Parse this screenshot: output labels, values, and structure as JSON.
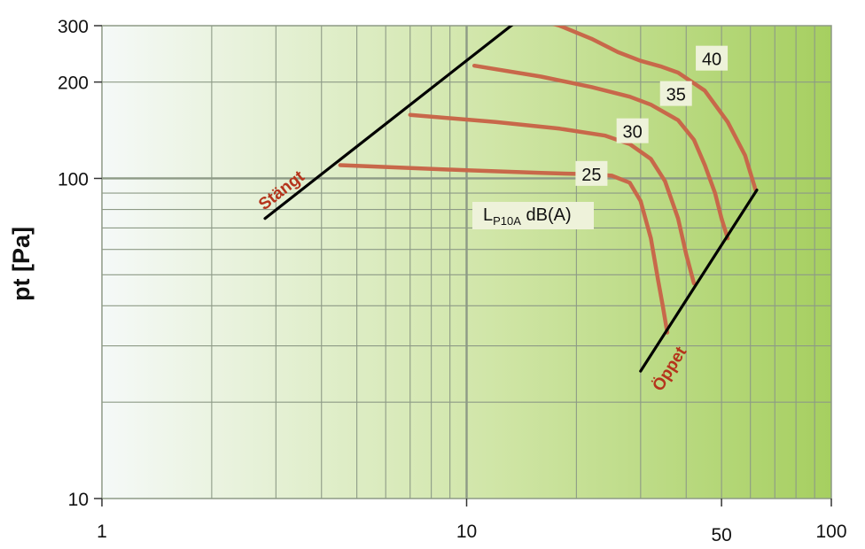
{
  "chart_data": {
    "type": "line",
    "ylabel": "pt [Pa]",
    "xlabel": "",
    "x_scale": "log",
    "y_scale": "log",
    "xlim": [
      1,
      100
    ],
    "ylim": [
      10,
      300
    ],
    "x_ticks": [
      {
        "value": 1,
        "label": "1"
      },
      {
        "value": 10,
        "label": "10"
      },
      {
        "value": 50,
        "label": "50"
      },
      {
        "value": 100,
        "label": "100"
      }
    ],
    "y_ticks": [
      {
        "value": 10,
        "label": "10"
      },
      {
        "value": 100,
        "label": "100"
      },
      {
        "value": 200,
        "label": "200"
      },
      {
        "value": 300,
        "label": "300"
      }
    ],
    "grid": true,
    "annotation": {
      "main": "L",
      "sub": "P10A",
      "tail": " dB(A)"
    },
    "series": [
      {
        "name": "25",
        "color": "#c8684a",
        "x": [
          4.5,
          10,
          16,
          22,
          25,
          28,
          30,
          32,
          33.5,
          34.5,
          35.5
        ],
        "y": [
          110,
          106,
          104,
          103,
          102,
          97,
          85,
          65,
          48,
          40,
          33
        ]
      },
      {
        "name": "30",
        "color": "#c8684a",
        "x": [
          7,
          12,
          18,
          24,
          28,
          32,
          35,
          38,
          40,
          42
        ],
        "y": [
          158,
          150,
          143,
          136,
          128,
          115,
          98,
          75,
          58,
          47
        ]
      },
      {
        "name": "35",
        "color": "#c8684a",
        "x": [
          10.5,
          16,
          22,
          28,
          32,
          38,
          42,
          45,
          48,
          50,
          52
        ],
        "y": [
          225,
          208,
          193,
          180,
          170,
          152,
          132,
          110,
          90,
          75,
          65
        ]
      },
      {
        "name": "40",
        "color": "#c8684a",
        "x": [
          14,
          18,
          22,
          26,
          30,
          34,
          38,
          45,
          52,
          58,
          62
        ],
        "y": [
          325,
          300,
          273,
          248,
          233,
          224,
          214,
          188,
          150,
          118,
          92
        ]
      }
    ],
    "limit_lines": [
      {
        "name": "Stängt",
        "color": "#000000",
        "x": [
          2.8,
          14
        ],
        "y": [
          75,
          315
        ]
      },
      {
        "name": "Öppet",
        "color": "#000000",
        "x": [
          30,
          62.5
        ],
        "y": [
          25,
          92
        ]
      }
    ],
    "curve_labels": [
      {
        "text": "25",
        "x": 22,
        "y": 103
      },
      {
        "text": "30",
        "x": 28.5,
        "y": 140
      },
      {
        "text": "35",
        "x": 37.5,
        "y": 183
      },
      {
        "text": "40",
        "x": 47,
        "y": 236
      }
    ],
    "line_label_colors": {
      "Stängt": "#b5341c",
      "Öppet": "#b5341c"
    },
    "colors": {
      "gradient_start": "#f5f9f8",
      "gradient_mid": "#cfe5a5",
      "gradient_end": "#a6cf60",
      "grid": "#8d9a86",
      "curve": "#c8684a",
      "label_box": "#eef2da"
    }
  }
}
